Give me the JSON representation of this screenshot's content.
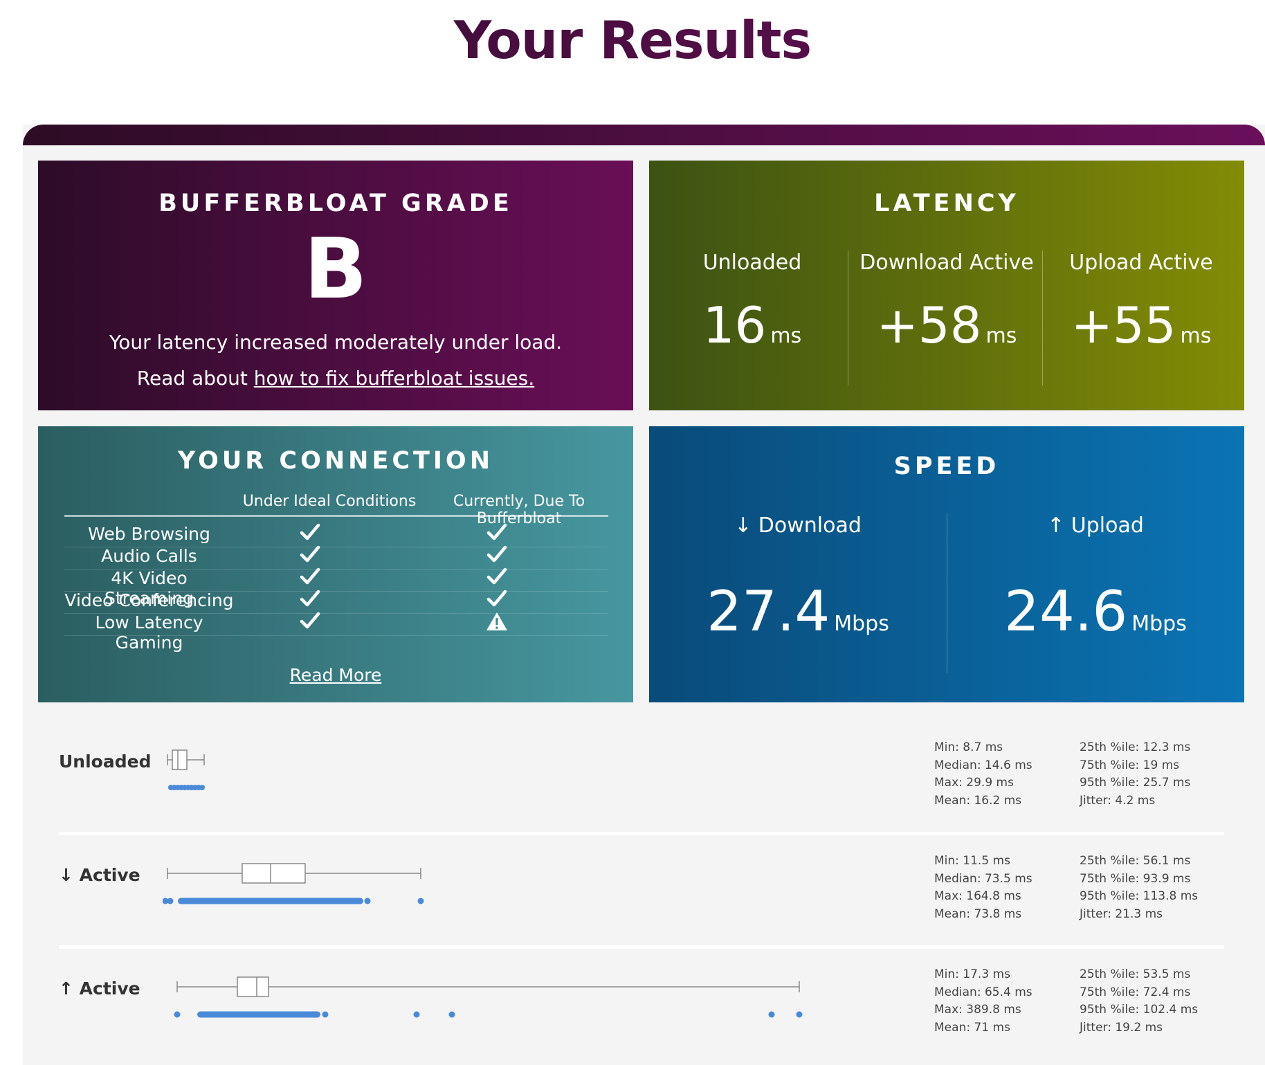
{
  "page": {
    "title": "Your Results"
  },
  "grade": {
    "title": "BUFFERBLOAT GRADE",
    "letter": "B",
    "description": "Your latency increased moderately under load.",
    "link_prefix": "Read about ",
    "link_text": "how to fix bufferbloat issues."
  },
  "latency": {
    "title": "LATENCY",
    "columns": [
      {
        "label": "Unloaded",
        "value": "16",
        "unit": "ms"
      },
      {
        "label": "Download Active",
        "value": "+58",
        "unit": "ms"
      },
      {
        "label": "Upload Active",
        "value": "+55",
        "unit": "ms"
      }
    ]
  },
  "connection": {
    "title": "YOUR CONNECTION",
    "col_ideal": "Under Ideal Conditions",
    "col_current": "Currently, Due To Bufferbloat",
    "rows": [
      {
        "name": "Web Browsing",
        "ideal": "check",
        "current": "check"
      },
      {
        "name": "Audio Calls",
        "ideal": "check",
        "current": "check"
      },
      {
        "name": "4K Video Streaming",
        "ideal": "check",
        "current": "check"
      },
      {
        "name": "Video Conferencing",
        "ideal": "check",
        "current": "check"
      },
      {
        "name": "Low Latency Gaming",
        "ideal": "check",
        "current": "warning"
      }
    ],
    "read_more": "Read More"
  },
  "speed": {
    "title": "SPEED",
    "download": {
      "label": "↓ Download",
      "value": "27.4",
      "unit": "Mbps"
    },
    "upload": {
      "label": "↑ Upload",
      "value": "24.6",
      "unit": "Mbps"
    }
  },
  "stats": [
    {
      "title": "Unloaded",
      "min": "Min: 8.7 ms",
      "median": "Median: 14.6 ms",
      "max": "Max: 29.9 ms",
      "mean": "Mean: 16.2 ms",
      "p25": "25th %ile: 12.3 ms",
      "p75": "75th %ile: 19 ms",
      "p95": "95th %ile: 25.7 ms",
      "jitter": "Jitter: 4.2 ms"
    },
    {
      "title": "↓ Active",
      "min": "Min: 11.5 ms",
      "median": "Median: 73.5 ms",
      "max": "Max: 164.8 ms",
      "mean": "Mean: 73.8 ms",
      "p25": "25th %ile: 56.1 ms",
      "p75": "75th %ile: 93.9 ms",
      "p95": "95th %ile: 113.8 ms",
      "jitter": "Jitter: 21.3 ms"
    },
    {
      "title": "↑ Active",
      "min": "Min: 17.3 ms",
      "median": "Median: 65.4 ms",
      "max": "Max: 389.8 ms",
      "mean": "Mean: 71 ms",
      "p25": "25th %ile: 53.5 ms",
      "p75": "75th %ile: 72.4 ms",
      "p95": "95th %ile: 102.4 ms",
      "jitter": "Jitter: 19.2 ms"
    }
  ]
}
